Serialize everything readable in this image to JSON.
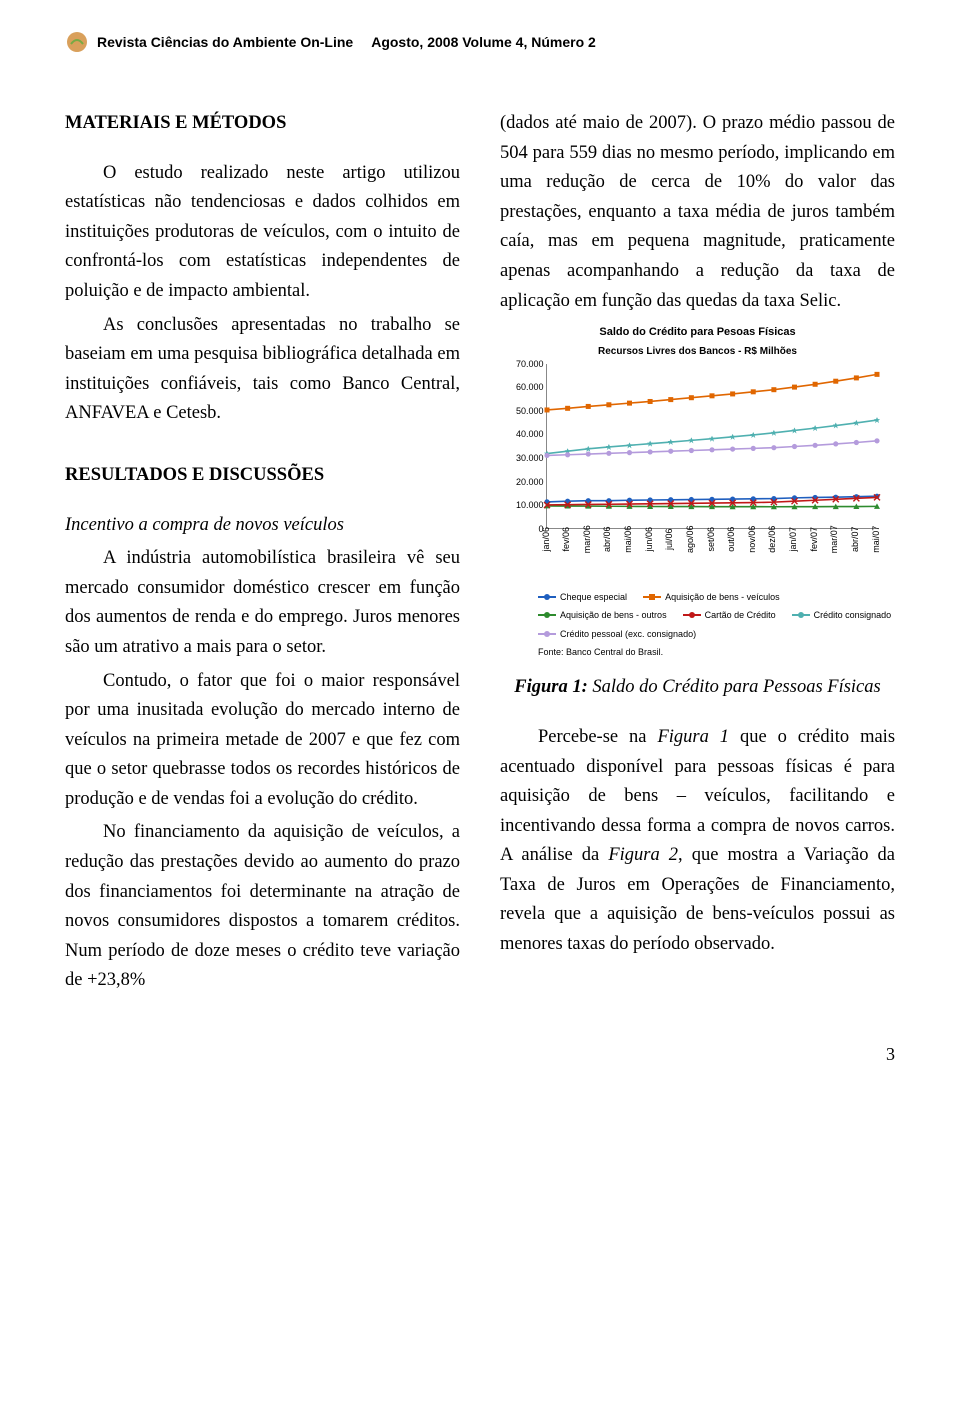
{
  "header": {
    "journal": "Revista Ciências do Ambiente On-Line",
    "issue": "Agosto, 2008 Volume 4, Número 2"
  },
  "left": {
    "h1": "MATERIAIS E MÉTODOS",
    "p1": "O estudo realizado neste artigo utilizou estatísticas não tendenciosas e dados colhidos em instituições produtoras de veículos, com o intuito de confrontá-los com estatísticas independentes de poluição e de impacto ambiental.",
    "p2": "As conclusões apresentadas no trabalho se baseiam em uma pesquisa bibliográfica detalhada em instituições confiáveis, tais como Banco Central, ANFAVEA e Cetesb.",
    "h2": "RESULTADOS E DISCUSSÕES",
    "p3a": "Incentivo a compra de novos veículos",
    "p3": "A indústria automobilística brasileira vê seu mercado consumidor doméstico crescer em função dos aumentos de renda e do emprego. Juros menores são um atrativo a mais para o setor.",
    "p4": "Contudo, o fator que foi o maior responsável por uma inusitada evolução do mercado interno de veículos na primeira metade de 2007 e que fez com que o setor quebrasse todos os recordes históricos de produção e de vendas foi a evolução do crédito.",
    "p5": "No financiamento da aquisição de veículos, a redução das prestações devido ao aumento do prazo dos financiamentos foi determinante na atração de novos consumidores dispostos a tomarem créditos. Num período de doze meses o crédito teve variação de +23,8%"
  },
  "right": {
    "p1": "(dados até maio de 2007). O prazo médio passou de 504 para 559 dias no mesmo período, implicando em uma redução de cerca de 10% do valor das prestações, enquanto a taxa média de juros também caía, mas em pequena magnitude, praticamente apenas acompanhando a redução da taxa de aplicação em função das quedas da taxa Selic.",
    "caption_b": "Figura 1:",
    "caption_t": " Saldo do Crédito para Pessoas Físicas",
    "p2": "Percebe-se na ",
    "p2b": "Figura 1",
    "p2c": " que o crédito mais acentuado disponível para pessoas físicas é para aquisição de bens – veículos, facilitando e incentivando dessa forma a compra de novos carros. A análise da ",
    "p2d": "Figura 2",
    "p2e": ", que mostra a Variação da Taxa de Juros em Operações de Financiamento, revela que a aquisição de bens-veículos possui as menores taxas do período observado."
  },
  "chart": {
    "title": "Saldo do Crédito para Pesoas Físicas",
    "subtitle": "Recursos Livres dos Bancos - R$ Milhões",
    "ylim": [
      0,
      70000
    ],
    "yticks": [
      0,
      10000,
      20000,
      30000,
      40000,
      50000,
      60000,
      70000
    ],
    "ytick_labels": [
      "0",
      "10.000",
      "20.000",
      "30.000",
      "40.000",
      "50.000",
      "60.000",
      "70.000"
    ],
    "x_labels": [
      "jan/06",
      "fev/06",
      "mar/06",
      "abr/06",
      "mai/06",
      "jun/06",
      "jul/06",
      "ago/06",
      "set/06",
      "out/06",
      "nov/06",
      "dez/06",
      "jan/07",
      "fev/07",
      "mar/07",
      "abr/07",
      "mai/07"
    ],
    "series": [
      {
        "name": "Cheque especial",
        "color": "#1f5fbf",
        "marker": "circle",
        "values": [
          11500,
          11800,
          12000,
          12000,
          12200,
          12300,
          12400,
          12500,
          12600,
          12700,
          12800,
          12900,
          13200,
          13400,
          13500,
          13700,
          13900
        ]
      },
      {
        "name": "Aquisição de bens - veículos",
        "color": "#e06600",
        "marker": "square",
        "values": [
          50500,
          51200,
          52000,
          52700,
          53400,
          54100,
          54900,
          55700,
          56500,
          57300,
          58200,
          59100,
          60200,
          61400,
          62700,
          64100,
          65600
        ]
      },
      {
        "name": "Aquisição de bens - outros",
        "color": "#2e8b2e",
        "marker": "triangle",
        "values": [
          9800,
          9750,
          9700,
          9650,
          9600,
          9550,
          9520,
          9500,
          9480,
          9460,
          9450,
          9440,
          9450,
          9470,
          9500,
          9540,
          9600
        ]
      },
      {
        "name": "Cartão de Crédito",
        "color": "#c01818",
        "marker": "x",
        "values": [
          10200,
          10300,
          10400,
          10500,
          10600,
          10700,
          10800,
          10900,
          11000,
          11100,
          11200,
          11400,
          11800,
          12200,
          12600,
          13000,
          13400
        ]
      },
      {
        "name": "Crédito consignado",
        "color": "#4fb0b0",
        "marker": "star",
        "values": [
          32000,
          33000,
          34000,
          34800,
          35500,
          36200,
          36900,
          37600,
          38300,
          39100,
          39900,
          40800,
          41800,
          42800,
          43900,
          45000,
          46200
        ]
      },
      {
        "name": "Crédito pessoal (exc. consignado)",
        "color": "#b49bdc",
        "marker": "circle",
        "values": [
          31200,
          31500,
          31800,
          32100,
          32400,
          32700,
          33000,
          33300,
          33600,
          33900,
          34200,
          34500,
          35000,
          35500,
          36100,
          36700,
          37400
        ]
      }
    ],
    "source": "Fonte: Banco Central do Brasil.",
    "legend_labels": [
      "Cheque especial",
      "Aquisição de bens - veículos",
      "Aquisição de bens - outros",
      "Cartão de Crédito",
      "Crédito consignado",
      "Crédito pessoal (exc. consignado)"
    ]
  },
  "page_number": "3"
}
